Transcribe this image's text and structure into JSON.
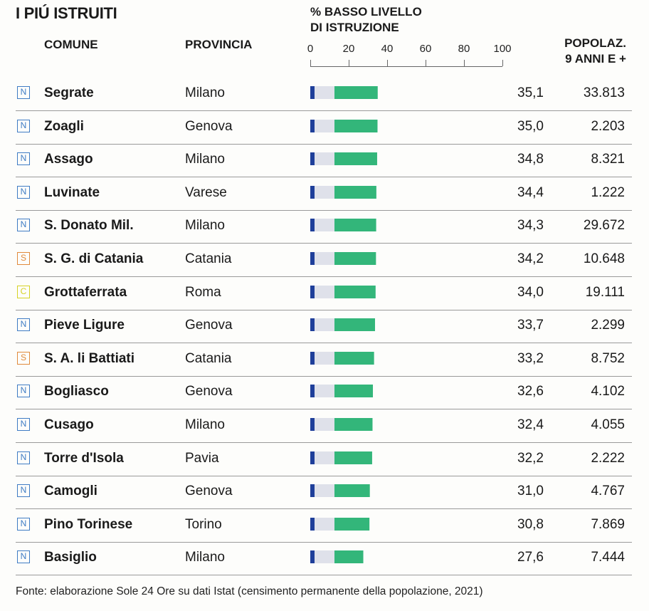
{
  "title": "I PIÚ ISTRUITI",
  "headers": {
    "comune": "COMUNE",
    "provincia": "PROVINCIA",
    "bar_line1": "% BASSO LIVELLO",
    "bar_line2": "DI ISTRUZIONE",
    "pop_line1": "POPOLAZ.",
    "pop_line2": "9 ANNI E +"
  },
  "footnote": "Fonte: elaborazione Sole 24 Ore su dati Istat (censimento permanente della popolazione, 2021)",
  "colors": {
    "bar_dark": "#1f3f9a",
    "bar_light": "#dfe1ea",
    "bar_green": "#33b67a",
    "badge_N": "#3f7cc4",
    "badge_S": "#e08a3c",
    "badge_C": "#d6d225"
  },
  "chart_data": {
    "type": "table",
    "x_axis": {
      "ticks": [
        "0",
        "20",
        "40",
        "60",
        "80",
        "100"
      ],
      "range": [
        0,
        100
      ]
    },
    "rows": [
      {
        "badge": "N",
        "comune": "Segrate",
        "provincia": "Milano",
        "pct": "35,1",
        "value": 35.1,
        "popolazione": "33.813"
      },
      {
        "badge": "N",
        "comune": "Zoagli",
        "provincia": "Genova",
        "pct": "35,0",
        "value": 35.0,
        "popolazione": "2.203"
      },
      {
        "badge": "N",
        "comune": "Assago",
        "provincia": "Milano",
        "pct": "34,8",
        "value": 34.8,
        "popolazione": "8.321"
      },
      {
        "badge": "N",
        "comune": "Luvinate",
        "provincia": "Varese",
        "pct": "34,4",
        "value": 34.4,
        "popolazione": "1.222"
      },
      {
        "badge": "N",
        "comune": "S. Donato Mil.",
        "provincia": "Milano",
        "pct": "34,3",
        "value": 34.3,
        "popolazione": "29.672"
      },
      {
        "badge": "S",
        "comune": "S. G. di Catania",
        "provincia": "Catania",
        "pct": "34,2",
        "value": 34.2,
        "popolazione": "10.648"
      },
      {
        "badge": "C",
        "comune": "Grottaferrata",
        "provincia": "Roma",
        "pct": "34,0",
        "value": 34.0,
        "popolazione": "19.111"
      },
      {
        "badge": "N",
        "comune": "Pieve Ligure",
        "provincia": "Genova",
        "pct": "33,7",
        "value": 33.7,
        "popolazione": "2.299"
      },
      {
        "badge": "S",
        "comune": "S. A. li Battiati",
        "provincia": "Catania",
        "pct": "33,2",
        "value": 33.2,
        "popolazione": "8.752"
      },
      {
        "badge": "N",
        "comune": "Bogliasco",
        "provincia": "Genova",
        "pct": "32,6",
        "value": 32.6,
        "popolazione": "4.102"
      },
      {
        "badge": "N",
        "comune": "Cusago",
        "provincia": "Milano",
        "pct": "32,4",
        "value": 32.4,
        "popolazione": "4.055"
      },
      {
        "badge": "N",
        "comune": "Torre d'Isola",
        "provincia": "Pavia",
        "pct": "32,2",
        "value": 32.2,
        "popolazione": "2.222"
      },
      {
        "badge": "N",
        "comune": "Camogli",
        "provincia": "Genova",
        "pct": "31,0",
        "value": 31.0,
        "popolazione": "4.767"
      },
      {
        "badge": "N",
        "comune": "Pino Torinese",
        "provincia": "Torino",
        "pct": "30,8",
        "value": 30.8,
        "popolazione": "7.869"
      },
      {
        "badge": "N",
        "comune": "Basiglio",
        "provincia": "Milano",
        "pct": "27,6",
        "value": 27.6,
        "popolazione": "7.444"
      }
    ]
  }
}
